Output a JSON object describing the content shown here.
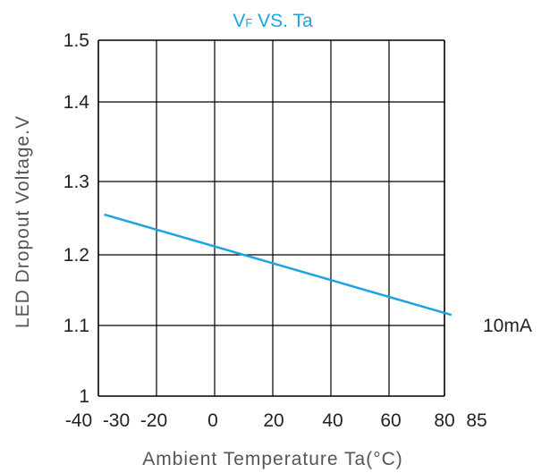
{
  "chart_data": {
    "type": "line",
    "title_main": "V",
    "title_sub": "F",
    "title_rest": " VS. Ta",
    "xlabel": "Ambient Temperature Ta(°C)",
    "ylabel": "LED Dropout Voltage.V",
    "xlim": [
      -40,
      85
    ],
    "ylim": [
      1.0,
      1.5
    ],
    "y_scale_note": "non-uniform",
    "x_ticks": [
      {
        "value": -40,
        "label": "-40"
      },
      {
        "value": -30,
        "label": "-30"
      },
      {
        "value": -20,
        "label": "-20"
      },
      {
        "value": 0,
        "label": "0"
      },
      {
        "value": 20,
        "label": "20"
      },
      {
        "value": 40,
        "label": "40"
      },
      {
        "value": 60,
        "label": "60"
      },
      {
        "value": 80,
        "label": "80"
      },
      {
        "value": 85,
        "label": "85"
      }
    ],
    "y_ticks": [
      {
        "value": 1.0,
        "label": "1"
      },
      {
        "value": 1.1,
        "label": "1.1"
      },
      {
        "value": 1.2,
        "label": "1.2"
      },
      {
        "value": 1.3,
        "label": "1.3"
      },
      {
        "value": 1.4,
        "label": "1.4"
      },
      {
        "value": 1.5,
        "label": "1.5"
      }
    ],
    "grid": true,
    "series": [
      {
        "name": "10mA",
        "color": "#1ca3e0",
        "x": [
          -38,
          82
        ],
        "y": [
          1.255,
          1.115
        ]
      }
    ]
  }
}
